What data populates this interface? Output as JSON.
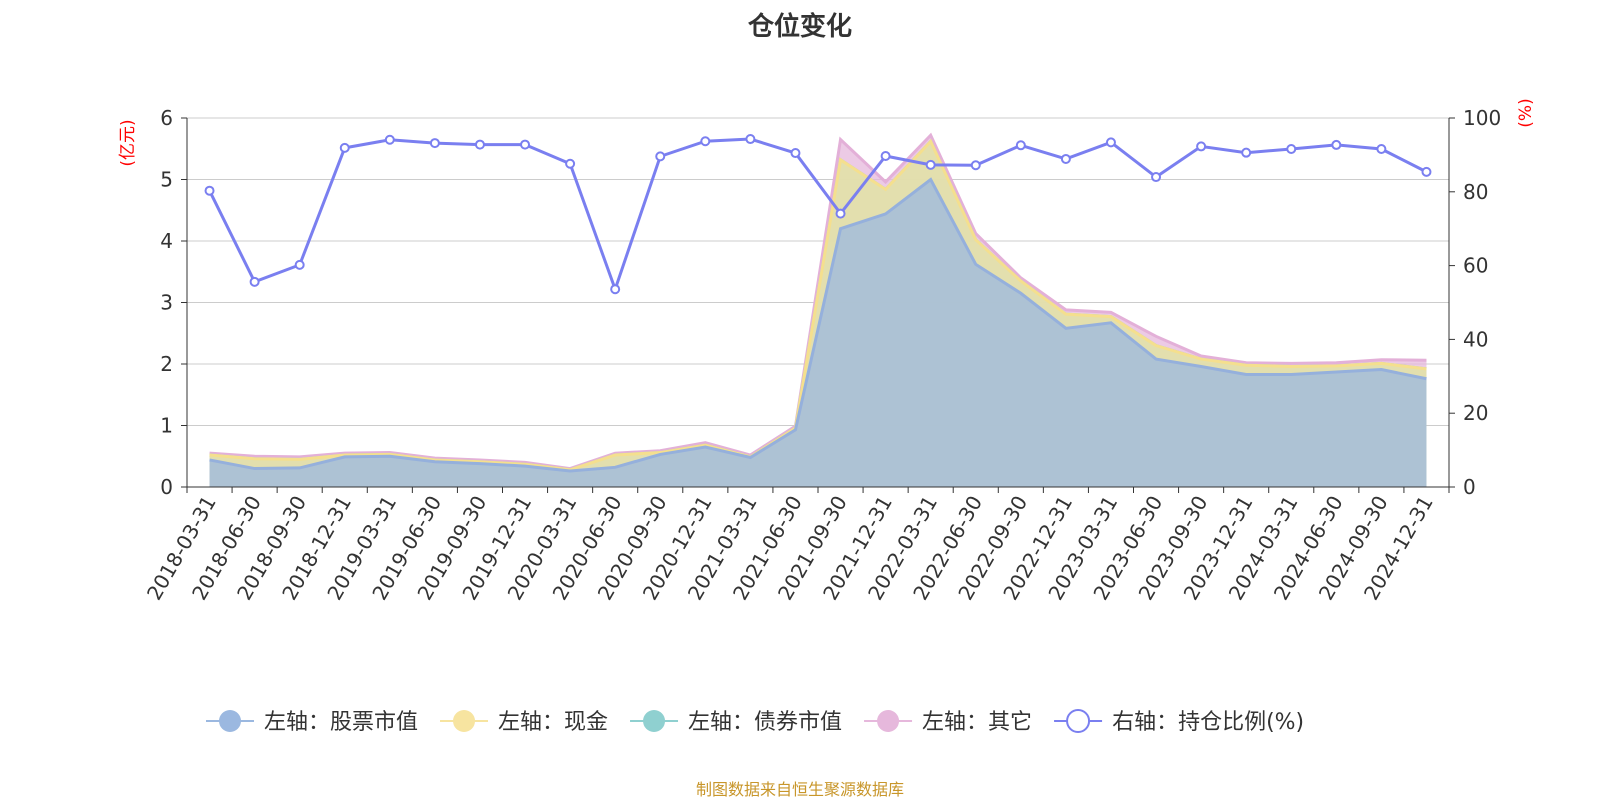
{
  "chart_data": {
    "type": "area",
    "title": "仓位变化",
    "left_axis_unit": "(亿元)",
    "right_axis_unit": "(%)",
    "ylim_left": [
      0,
      6
    ],
    "yticks_left": [
      "0",
      "1",
      "2",
      "3",
      "4",
      "5",
      "6"
    ],
    "ylim_right": [
      0,
      100
    ],
    "yticks_right": [
      "0",
      "20",
      "40",
      "60",
      "80",
      "100"
    ],
    "grid": true,
    "categories": [
      "2018-03-31",
      "2018-06-30",
      "2018-09-30",
      "2018-12-31",
      "2019-03-31",
      "2019-06-30",
      "2019-09-30",
      "2019-12-31",
      "2020-03-31",
      "2020-06-30",
      "2020-09-30",
      "2020-12-31",
      "2021-03-31",
      "2021-06-30",
      "2021-09-30",
      "2021-12-31",
      "2022-03-31",
      "2022-06-30",
      "2022-09-30",
      "2022-12-31",
      "2023-03-31",
      "2023-06-30",
      "2023-09-30",
      "2023-12-31",
      "2024-03-31",
      "2024-06-30",
      "2024-09-30",
      "2024-12-31"
    ],
    "series": [
      {
        "name": "左轴：股票市值",
        "axis": "left",
        "stacked": true,
        "color": "#9bb8e0",
        "values": [
          0.44,
          0.3,
          0.31,
          0.49,
          0.5,
          0.41,
          0.38,
          0.34,
          0.26,
          0.32,
          0.53,
          0.65,
          0.48,
          0.93,
          4.2,
          4.44,
          5.0,
          3.62,
          3.15,
          2.58,
          2.67,
          2.08,
          1.96,
          1.83,
          1.83,
          1.87,
          1.91,
          1.76
        ]
      },
      {
        "name": "左轴：现金",
        "axis": "left",
        "stacked": true,
        "color": "#f7e4a0",
        "values": [
          0.08,
          0.16,
          0.14,
          0.03,
          0.03,
          0.03,
          0.03,
          0.03,
          0.02,
          0.2,
          0.03,
          0.03,
          0.01,
          0.03,
          1.12,
          0.4,
          0.62,
          0.4,
          0.2,
          0.23,
          0.1,
          0.22,
          0.12,
          0.15,
          0.13,
          0.1,
          0.1,
          0.16
        ]
      },
      {
        "name": "左轴：债券市值",
        "axis": "left",
        "stacked": true,
        "color": "#8fd0d0",
        "values": [
          0,
          0,
          0,
          0,
          0,
          0,
          0,
          0,
          0,
          0,
          0,
          0,
          0,
          0,
          0,
          0,
          0,
          0,
          0,
          0,
          0,
          0,
          0,
          0,
          0,
          0,
          0,
          0
        ]
      },
      {
        "name": "左轴：其它",
        "axis": "left",
        "stacked": true,
        "color": "#e6b8dc",
        "values": [
          0.03,
          0.04,
          0.04,
          0.03,
          0.03,
          0.03,
          0.03,
          0.03,
          0.02,
          0.03,
          0.03,
          0.04,
          0.03,
          0.03,
          0.33,
          0.12,
          0.1,
          0.1,
          0.05,
          0.07,
          0.07,
          0.15,
          0.05,
          0.04,
          0.05,
          0.05,
          0.06,
          0.14
        ]
      },
      {
        "name": "右轴：持仓比例(%)",
        "axis": "right",
        "stacked": false,
        "color": "#7a7ff0",
        "values": [
          80.3,
          55.6,
          60.2,
          91.9,
          94.1,
          93.2,
          92.8,
          92.8,
          87.6,
          53.6,
          89.6,
          93.7,
          94.3,
          90.5,
          74.1,
          89.7,
          87.3,
          87.2,
          92.6,
          88.9,
          93.4,
          84.0,
          92.3,
          90.6,
          91.6,
          92.7,
          91.6,
          85.4
        ]
      }
    ]
  },
  "legend": [
    {
      "label": "左轴：股票市值",
      "color": "#9bb8e0",
      "marker": "filled"
    },
    {
      "label": "左轴：现金",
      "color": "#f7e4a0",
      "marker": "filled"
    },
    {
      "label": "左轴：债券市值",
      "color": "#8fd0d0",
      "marker": "filled"
    },
    {
      "label": "左轴：其它",
      "color": "#e6b8dc",
      "marker": "filled"
    },
    {
      "label": "右轴：持仓比例(%)",
      "color": "#7a7ff0",
      "marker": "hollow"
    }
  ],
  "source_text": "制图数据来自恒生聚源数据库",
  "colors": {
    "title": "#333333",
    "axis": "#333333",
    "grid": "#cccccc",
    "unit": "#ff0000",
    "source": "#c8962a",
    "stock_edge": "#95b0dc",
    "cash_edge": "#f5df8e",
    "other_edge": "#e3b0d8"
  }
}
